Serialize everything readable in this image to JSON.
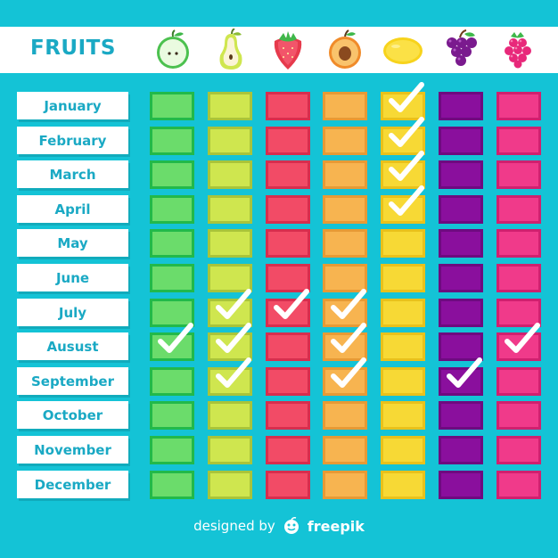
{
  "header": {
    "title": "FRUITS"
  },
  "fruits": [
    {
      "icon": "apple-icon",
      "color": "#6bdc6b",
      "border": "#22b94a"
    },
    {
      "icon": "pear-icon",
      "color": "#cfe64f",
      "border": "#a9c43a"
    },
    {
      "icon": "strawberry-icon",
      "color": "#f24b66",
      "border": "#d72e4e"
    },
    {
      "icon": "peach-icon",
      "color": "#f7b450",
      "border": "#e79a35"
    },
    {
      "icon": "lemon-icon",
      "color": "#f7d935",
      "border": "#e9c11b"
    },
    {
      "icon": "grapes-icon",
      "color": "#8a0f9d",
      "border": "#6e0a80"
    },
    {
      "icon": "raspberry-icon",
      "color": "#f03a8a",
      "border": "#d0206f"
    }
  ],
  "months": [
    "January",
    "February",
    "March",
    "April",
    "May",
    "June",
    "July",
    "Ausust",
    "September",
    "October",
    "November",
    "December"
  ],
  "checks": [
    [
      0,
      0,
      0,
      0,
      1,
      0,
      0
    ],
    [
      0,
      0,
      0,
      0,
      1,
      0,
      0
    ],
    [
      0,
      0,
      0,
      0,
      1,
      0,
      0
    ],
    [
      0,
      0,
      0,
      0,
      1,
      0,
      0
    ],
    [
      0,
      0,
      0,
      0,
      0,
      0,
      0
    ],
    [
      0,
      0,
      0,
      0,
      0,
      0,
      0
    ],
    [
      0,
      1,
      1,
      1,
      0,
      0,
      0
    ],
    [
      1,
      1,
      0,
      1,
      0,
      0,
      1
    ],
    [
      0,
      1,
      0,
      1,
      0,
      1,
      0
    ],
    [
      0,
      0,
      0,
      0,
      0,
      0,
      0
    ],
    [
      0,
      0,
      0,
      0,
      0,
      0,
      0
    ],
    [
      0,
      0,
      0,
      0,
      0,
      0,
      0
    ]
  ],
  "footer": {
    "text": "designed by",
    "brand": "freepik"
  }
}
